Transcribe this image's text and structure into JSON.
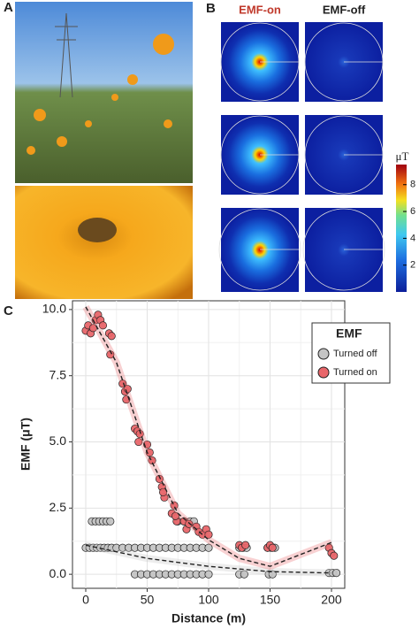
{
  "panels": {
    "a": "A",
    "b": "B",
    "c": "C"
  },
  "panel_b": {
    "columns": [
      "EMF-on",
      "EMF-off"
    ],
    "colorbar": {
      "label": "μT",
      "lim": [
        0,
        9.5
      ],
      "ticks": [
        2,
        4,
        6,
        8
      ]
    }
  },
  "chart_data": {
    "type": "scatter",
    "xlabel": "Distance (m)",
    "ylabel": "EMF (μT)",
    "xlim": [
      -10.8,
      210.8
    ],
    "ylim": [
      -0.53,
      10.33
    ],
    "xticks": [
      0,
      50,
      100,
      150,
      200
    ],
    "yticks": [
      {
        "value": 0,
        "label": "0.0"
      },
      {
        "value": 2.5,
        "label": "2.5"
      },
      {
        "value": 5,
        "label": "5.0"
      },
      {
        "value": 7.5,
        "label": "7.5"
      },
      {
        "value": 10,
        "label": "10.0"
      }
    ],
    "grid": true,
    "legend_title": "EMF",
    "series": [
      {
        "name": "Turned off",
        "color": "#c4c4c4",
        "x": [
          0,
          3,
          6,
          9,
          12,
          15,
          18,
          21,
          5,
          8,
          11,
          14,
          17,
          20,
          25,
          30,
          35,
          40,
          45,
          50,
          55,
          60,
          65,
          70,
          75,
          80,
          85,
          90,
          95,
          100,
          40,
          45,
          50,
          55,
          60,
          65,
          70,
          75,
          80,
          85,
          90,
          95,
          100,
          75,
          80,
          85,
          88,
          125,
          128,
          131,
          125,
          129,
          148,
          151,
          154,
          149,
          152,
          198,
          201,
          204
        ],
        "values": [
          1.0,
          1.0,
          1.0,
          1.0,
          1.0,
          1.0,
          1.0,
          1.0,
          2.0,
          2.0,
          2.0,
          2.0,
          2.0,
          2.0,
          1.0,
          1.0,
          1.0,
          1.0,
          1.0,
          1.0,
          1.0,
          1.0,
          1.0,
          1.0,
          1.0,
          1.0,
          1.0,
          1.0,
          1.0,
          1.0,
          0.0,
          0.0,
          0.0,
          0.0,
          0.0,
          0.0,
          0.0,
          0.0,
          0.0,
          0.0,
          0.0,
          0.0,
          0.0,
          2.0,
          2.0,
          2.0,
          2.0,
          1.0,
          1.0,
          1.0,
          0.0,
          0.0,
          1.0,
          1.0,
          1.0,
          0.0,
          0.0,
          0.05,
          0.05,
          0.05
        ],
        "fit": {
          "x": [
            0,
            50,
            100,
            150,
            200
          ],
          "values": [
            1.1,
            0.6,
            0.3,
            0.1,
            0.05
          ]
        }
      },
      {
        "name": "Turned on",
        "color": "#e8666a",
        "x": [
          0,
          2,
          4,
          6,
          8,
          10,
          12,
          14,
          19,
          21,
          20,
          30,
          32,
          34,
          33,
          40,
          42,
          44,
          43,
          50,
          52,
          54,
          60,
          62,
          64,
          63,
          70,
          72,
          74,
          73,
          80,
          82,
          84,
          90,
          92,
          95,
          98,
          100,
          125,
          127,
          130,
          148,
          150,
          152,
          198,
          200,
          202
        ],
        "values": [
          9.2,
          9.4,
          9.1,
          9.3,
          9.6,
          9.8,
          9.6,
          9.4,
          9.1,
          9.0,
          8.3,
          7.2,
          6.9,
          7.0,
          6.6,
          5.5,
          5.4,
          5.3,
          5.0,
          4.9,
          4.6,
          4.3,
          3.6,
          3.3,
          2.9,
          3.1,
          2.3,
          2.6,
          2.0,
          2.2,
          2.0,
          1.7,
          1.9,
          1.8,
          1.6,
          1.5,
          1.7,
          1.5,
          1.1,
          1.0,
          1.1,
          1.0,
          1.1,
          1.0,
          1.0,
          0.8,
          0.7
        ],
        "fit": {
          "x": [
            0,
            25,
            50,
            75,
            100,
            125,
            150,
            175,
            200
          ],
          "values": [
            10.1,
            8.0,
            4.6,
            2.3,
            1.3,
            0.6,
            0.3,
            0.75,
            1.2
          ]
        }
      }
    ]
  }
}
